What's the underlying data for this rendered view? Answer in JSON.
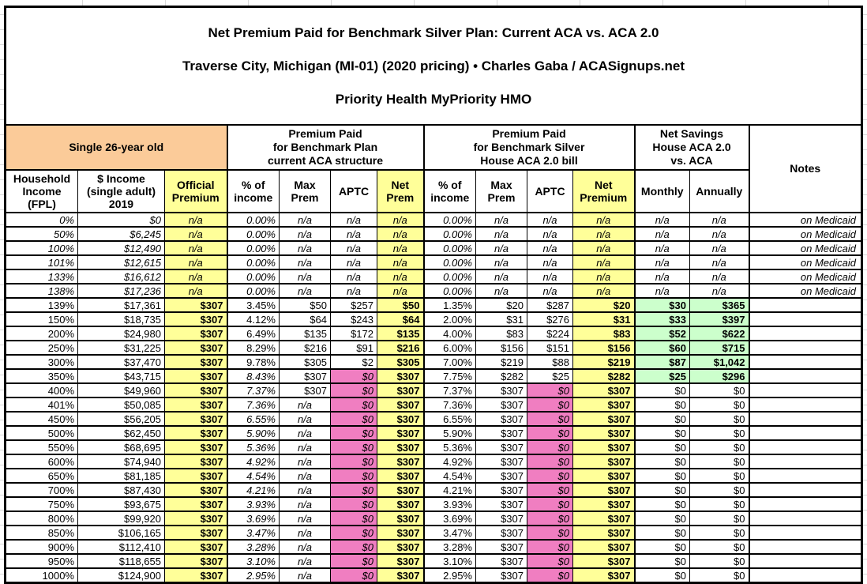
{
  "title": {
    "line1": "Net Premium Paid for Benchmark Silver Plan: Current ACA vs. ACA 2.0",
    "line2": "Traverse City, Michigan (MI-01) (2020 pricing) • Charles Gaba / ACASignups.net",
    "line3": "Priority Health MyPriority HMO"
  },
  "colors": {
    "orange": "#fbcb99",
    "yellow": "#ffff99",
    "pink": "#f07ec1",
    "green": "#ccffcc",
    "grid_gray": "#d9d9d9",
    "border_black": "#000000"
  },
  "header": {
    "subject": "Single 26-year old",
    "group_current_aca": "Premium Paid\nfor Benchmark Plan\ncurrent ACA structure",
    "group_aca2": "Premium Paid\nfor Benchmark Silver\nHouse ACA 2.0 bill",
    "group_savings": "Net Savings\nHouse ACA 2.0\nvs. ACA",
    "notes": "Notes",
    "columns": {
      "fpl": "Household\nIncome\n(FPL)",
      "income": "$ Income\n(single adult)\n2019",
      "official": "Official\nPremium",
      "pct1": "% of\nincome",
      "max1": "Max\nPrem",
      "aptc1": "APTC",
      "net1": "Net\nPrem",
      "pct2": "% of\nincome",
      "max2": "Max\nPrem",
      "aptc2": "APTC",
      "net2": "Net\nPremium",
      "monthly": "Monthly",
      "annually": "Annually"
    }
  },
  "rows": [
    {
      "fpl": "0%",
      "income": "$0",
      "official": "n/a",
      "aca": [
        "0.00%",
        "n/a",
        "n/a",
        "n/a"
      ],
      "aca2": [
        "0.00%",
        "n/a",
        "n/a",
        "n/a"
      ],
      "savings": [
        "n/a",
        "n/a"
      ],
      "note": "on Medicaid",
      "medicaid": true
    },
    {
      "fpl": "50%",
      "income": "$6,245",
      "official": "n/a",
      "aca": [
        "0.00%",
        "n/a",
        "n/a",
        "n/a"
      ],
      "aca2": [
        "0.00%",
        "n/a",
        "n/a",
        "n/a"
      ],
      "savings": [
        "n/a",
        "n/a"
      ],
      "note": "on Medicaid",
      "medicaid": true
    },
    {
      "fpl": "100%",
      "income": "$12,490",
      "official": "n/a",
      "aca": [
        "0.00%",
        "n/a",
        "n/a",
        "n/a"
      ],
      "aca2": [
        "0.00%",
        "n/a",
        "n/a",
        "n/a"
      ],
      "savings": [
        "n/a",
        "n/a"
      ],
      "note": "on Medicaid",
      "medicaid": true
    },
    {
      "fpl": "101%",
      "income": "$12,615",
      "official": "n/a",
      "aca": [
        "0.00%",
        "n/a",
        "n/a",
        "n/a"
      ],
      "aca2": [
        "0.00%",
        "n/a",
        "n/a",
        "n/a"
      ],
      "savings": [
        "n/a",
        "n/a"
      ],
      "note": "on Medicaid",
      "medicaid": true
    },
    {
      "fpl": "133%",
      "income": "$16,612",
      "official": "n/a",
      "aca": [
        "0.00%",
        "n/a",
        "n/a",
        "n/a"
      ],
      "aca2": [
        "0.00%",
        "n/a",
        "n/a",
        "n/a"
      ],
      "savings": [
        "n/a",
        "n/a"
      ],
      "note": "on Medicaid",
      "medicaid": true
    },
    {
      "fpl": "138%",
      "income": "$17,236",
      "official": "n/a",
      "aca": [
        "0.00%",
        "n/a",
        "n/a",
        "n/a"
      ],
      "aca2": [
        "0.00%",
        "n/a",
        "n/a",
        "n/a"
      ],
      "savings": [
        "n/a",
        "n/a"
      ],
      "note": "on Medicaid",
      "medicaid": true
    },
    {
      "fpl": "139%",
      "income": "$17,361",
      "official": "$307",
      "aca": [
        "3.45%",
        "$50",
        "$257",
        "$50"
      ],
      "aca2": [
        "1.35%",
        "$20",
        "$287",
        "$20"
      ],
      "savings": [
        "$30",
        "$365"
      ],
      "note": ""
    },
    {
      "fpl": "150%",
      "income": "$18,735",
      "official": "$307",
      "aca": [
        "4.12%",
        "$64",
        "$243",
        "$64"
      ],
      "aca2": [
        "2.00%",
        "$31",
        "$276",
        "$31"
      ],
      "savings": [
        "$33",
        "$397"
      ],
      "note": ""
    },
    {
      "fpl": "200%",
      "income": "$24,980",
      "official": "$307",
      "aca": [
        "6.49%",
        "$135",
        "$172",
        "$135"
      ],
      "aca2": [
        "4.00%",
        "$83",
        "$224",
        "$83"
      ],
      "savings": [
        "$52",
        "$622"
      ],
      "note": ""
    },
    {
      "fpl": "250%",
      "income": "$31,225",
      "official": "$307",
      "aca": [
        "8.29%",
        "$216",
        "$91",
        "$216"
      ],
      "aca2": [
        "6.00%",
        "$156",
        "$151",
        "$156"
      ],
      "savings": [
        "$60",
        "$715"
      ],
      "note": ""
    },
    {
      "fpl": "300%",
      "income": "$37,470",
      "official": "$307",
      "aca": [
        "9.78%",
        "$305",
        "$2",
        "$305"
      ],
      "aca2": [
        "7.00%",
        "$219",
        "$88",
        "$219"
      ],
      "savings": [
        "$87",
        "$1,042"
      ],
      "note": ""
    },
    {
      "fpl": "350%",
      "income": "$43,715",
      "official": "$307",
      "aca": [
        "8.43%",
        "$307",
        "$0",
        "$307"
      ],
      "aca2": [
        "7.75%",
        "$282",
        "$25",
        "$282"
      ],
      "savings": [
        "$25",
        "$296"
      ],
      "note": "",
      "pct_italic": true
    },
    {
      "fpl": "400%",
      "income": "$49,960",
      "official": "$307",
      "aca": [
        "7.37%",
        "$307",
        "$0",
        "$307"
      ],
      "aca2": [
        "7.37%",
        "$307",
        "$0",
        "$307"
      ],
      "savings": [
        "$0",
        "$0"
      ],
      "note": "",
      "pct_italic": true
    },
    {
      "fpl": "401%",
      "income": "$50,085",
      "official": "$307",
      "aca": [
        "7.36%",
        "n/a",
        "$0",
        "$307"
      ],
      "aca2": [
        "7.36%",
        "$307",
        "$0",
        "$307"
      ],
      "savings": [
        "$0",
        "$0"
      ],
      "note": "",
      "pct_italic": true
    },
    {
      "fpl": "450%",
      "income": "$56,205",
      "official": "$307",
      "aca": [
        "6.55%",
        "n/a",
        "$0",
        "$307"
      ],
      "aca2": [
        "6.55%",
        "$307",
        "$0",
        "$307"
      ],
      "savings": [
        "$0",
        "$0"
      ],
      "note": "",
      "pct_italic": true
    },
    {
      "fpl": "500%",
      "income": "$62,450",
      "official": "$307",
      "aca": [
        "5.90%",
        "n/a",
        "$0",
        "$307"
      ],
      "aca2": [
        "5.90%",
        "$307",
        "$0",
        "$307"
      ],
      "savings": [
        "$0",
        "$0"
      ],
      "note": "",
      "pct_italic": true
    },
    {
      "fpl": "550%",
      "income": "$68,695",
      "official": "$307",
      "aca": [
        "5.36%",
        "n/a",
        "$0",
        "$307"
      ],
      "aca2": [
        "5.36%",
        "$307",
        "$0",
        "$307"
      ],
      "savings": [
        "$0",
        "$0"
      ],
      "note": "",
      "pct_italic": true
    },
    {
      "fpl": "600%",
      "income": "$74,940",
      "official": "$307",
      "aca": [
        "4.92%",
        "n/a",
        "$0",
        "$307"
      ],
      "aca2": [
        "4.92%",
        "$307",
        "$0",
        "$307"
      ],
      "savings": [
        "$0",
        "$0"
      ],
      "note": "",
      "pct_italic": true
    },
    {
      "fpl": "650%",
      "income": "$81,185",
      "official": "$307",
      "aca": [
        "4.54%",
        "n/a",
        "$0",
        "$307"
      ],
      "aca2": [
        "4.54%",
        "$307",
        "$0",
        "$307"
      ],
      "savings": [
        "$0",
        "$0"
      ],
      "note": "",
      "pct_italic": true
    },
    {
      "fpl": "700%",
      "income": "$87,430",
      "official": "$307",
      "aca": [
        "4.21%",
        "n/a",
        "$0",
        "$307"
      ],
      "aca2": [
        "4.21%",
        "$307",
        "$0",
        "$307"
      ],
      "savings": [
        "$0",
        "$0"
      ],
      "note": "",
      "pct_italic": true
    },
    {
      "fpl": "750%",
      "income": "$93,675",
      "official": "$307",
      "aca": [
        "3.93%",
        "n/a",
        "$0",
        "$307"
      ],
      "aca2": [
        "3.93%",
        "$307",
        "$0",
        "$307"
      ],
      "savings": [
        "$0",
        "$0"
      ],
      "note": "",
      "pct_italic": true
    },
    {
      "fpl": "800%",
      "income": "$99,920",
      "official": "$307",
      "aca": [
        "3.69%",
        "n/a",
        "$0",
        "$307"
      ],
      "aca2": [
        "3.69%",
        "$307",
        "$0",
        "$307"
      ],
      "savings": [
        "$0",
        "$0"
      ],
      "note": "",
      "pct_italic": true
    },
    {
      "fpl": "850%",
      "income": "$106,165",
      "official": "$307",
      "aca": [
        "3.47%",
        "n/a",
        "$0",
        "$307"
      ],
      "aca2": [
        "3.47%",
        "$307",
        "$0",
        "$307"
      ],
      "savings": [
        "$0",
        "$0"
      ],
      "note": "",
      "pct_italic": true
    },
    {
      "fpl": "900%",
      "income": "$112,410",
      "official": "$307",
      "aca": [
        "3.28%",
        "n/a",
        "$0",
        "$307"
      ],
      "aca2": [
        "3.28%",
        "$307",
        "$0",
        "$307"
      ],
      "savings": [
        "$0",
        "$0"
      ],
      "note": "",
      "pct_italic": true
    },
    {
      "fpl": "950%",
      "income": "$118,655",
      "official": "$307",
      "aca": [
        "3.10%",
        "n/a",
        "$0",
        "$307"
      ],
      "aca2": [
        "3.10%",
        "$307",
        "$0",
        "$307"
      ],
      "savings": [
        "$0",
        "$0"
      ],
      "note": "",
      "pct_italic": true
    },
    {
      "fpl": "1000%",
      "income": "$124,900",
      "official": "$307",
      "aca": [
        "2.95%",
        "n/a",
        "$0",
        "$307"
      ],
      "aca2": [
        "2.95%",
        "$307",
        "$0",
        "$307"
      ],
      "savings": [
        "$0",
        "$0"
      ],
      "note": "",
      "pct_italic": true
    }
  ]
}
